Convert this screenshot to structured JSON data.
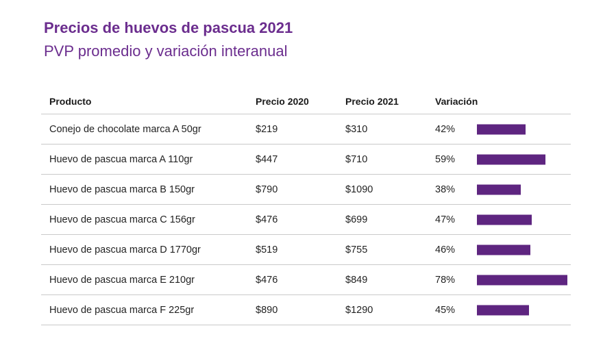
{
  "title": "Precios de huevos de pascua 2021",
  "subtitle": "PVP promedio y variación interanual",
  "accent_color": "#6b2d8e",
  "bar_color": "#5e2580",
  "columns": {
    "product": "Producto",
    "price_2020": "Precio 2020",
    "price_2021": "Precio 2021",
    "variation": "Variación"
  },
  "rows": [
    {
      "product": "Conejo de chocolate marca A 50gr",
      "price_2020": "$219",
      "price_2021": "$310",
      "variation": "42%"
    },
    {
      "product": "Huevo de pascua marca A 110gr",
      "price_2020": "$447",
      "price_2021": "$710",
      "variation": "59%"
    },
    {
      "product": "Huevo de pascua marca B 150gr",
      "price_2020": "$790",
      "price_2021": "$1090",
      "variation": "38%"
    },
    {
      "product": "Huevo de pascua marca C 156gr",
      "price_2020": "$476",
      "price_2021": "$699",
      "variation": "47%"
    },
    {
      "product": "Huevo de pascua marca D 1770gr",
      "price_2020": "$519",
      "price_2021": "$755",
      "variation": "46%"
    },
    {
      "product": "Huevo de pascua marca E 210gr",
      "price_2020": "$476",
      "price_2021": "$849",
      "variation": "78%"
    },
    {
      "product": "Huevo de pascua marca F 225gr",
      "price_2020": "$890",
      "price_2021": "$1290",
      "variation": "45%"
    }
  ],
  "chart_data": {
    "type": "table",
    "title": "Precios de huevos de pascua 2021",
    "subtitle": "PVP promedio y variación interanual",
    "columns": [
      "Producto",
      "Precio 2020",
      "Precio 2021",
      "Variación"
    ],
    "categories": [
      "Conejo de chocolate marca A 50gr",
      "Huevo de pascua marca A 110gr",
      "Huevo de pascua marca B 150gr",
      "Huevo de pascua marca C 156gr",
      "Huevo de pascua marca D 1770gr",
      "Huevo de pascua marca E 210gr",
      "Huevo de pascua marca F 225gr"
    ],
    "series": [
      {
        "name": "Precio 2020",
        "values": [
          219,
          447,
          790,
          476,
          519,
          476,
          890
        ]
      },
      {
        "name": "Precio 2021",
        "values": [
          310,
          710,
          1090,
          699,
          755,
          849,
          1290
        ]
      },
      {
        "name": "Variación",
        "values": [
          42,
          59,
          38,
          47,
          46,
          78,
          45
        ]
      }
    ],
    "bar_series": "Variación",
    "bar_max": 78
  }
}
